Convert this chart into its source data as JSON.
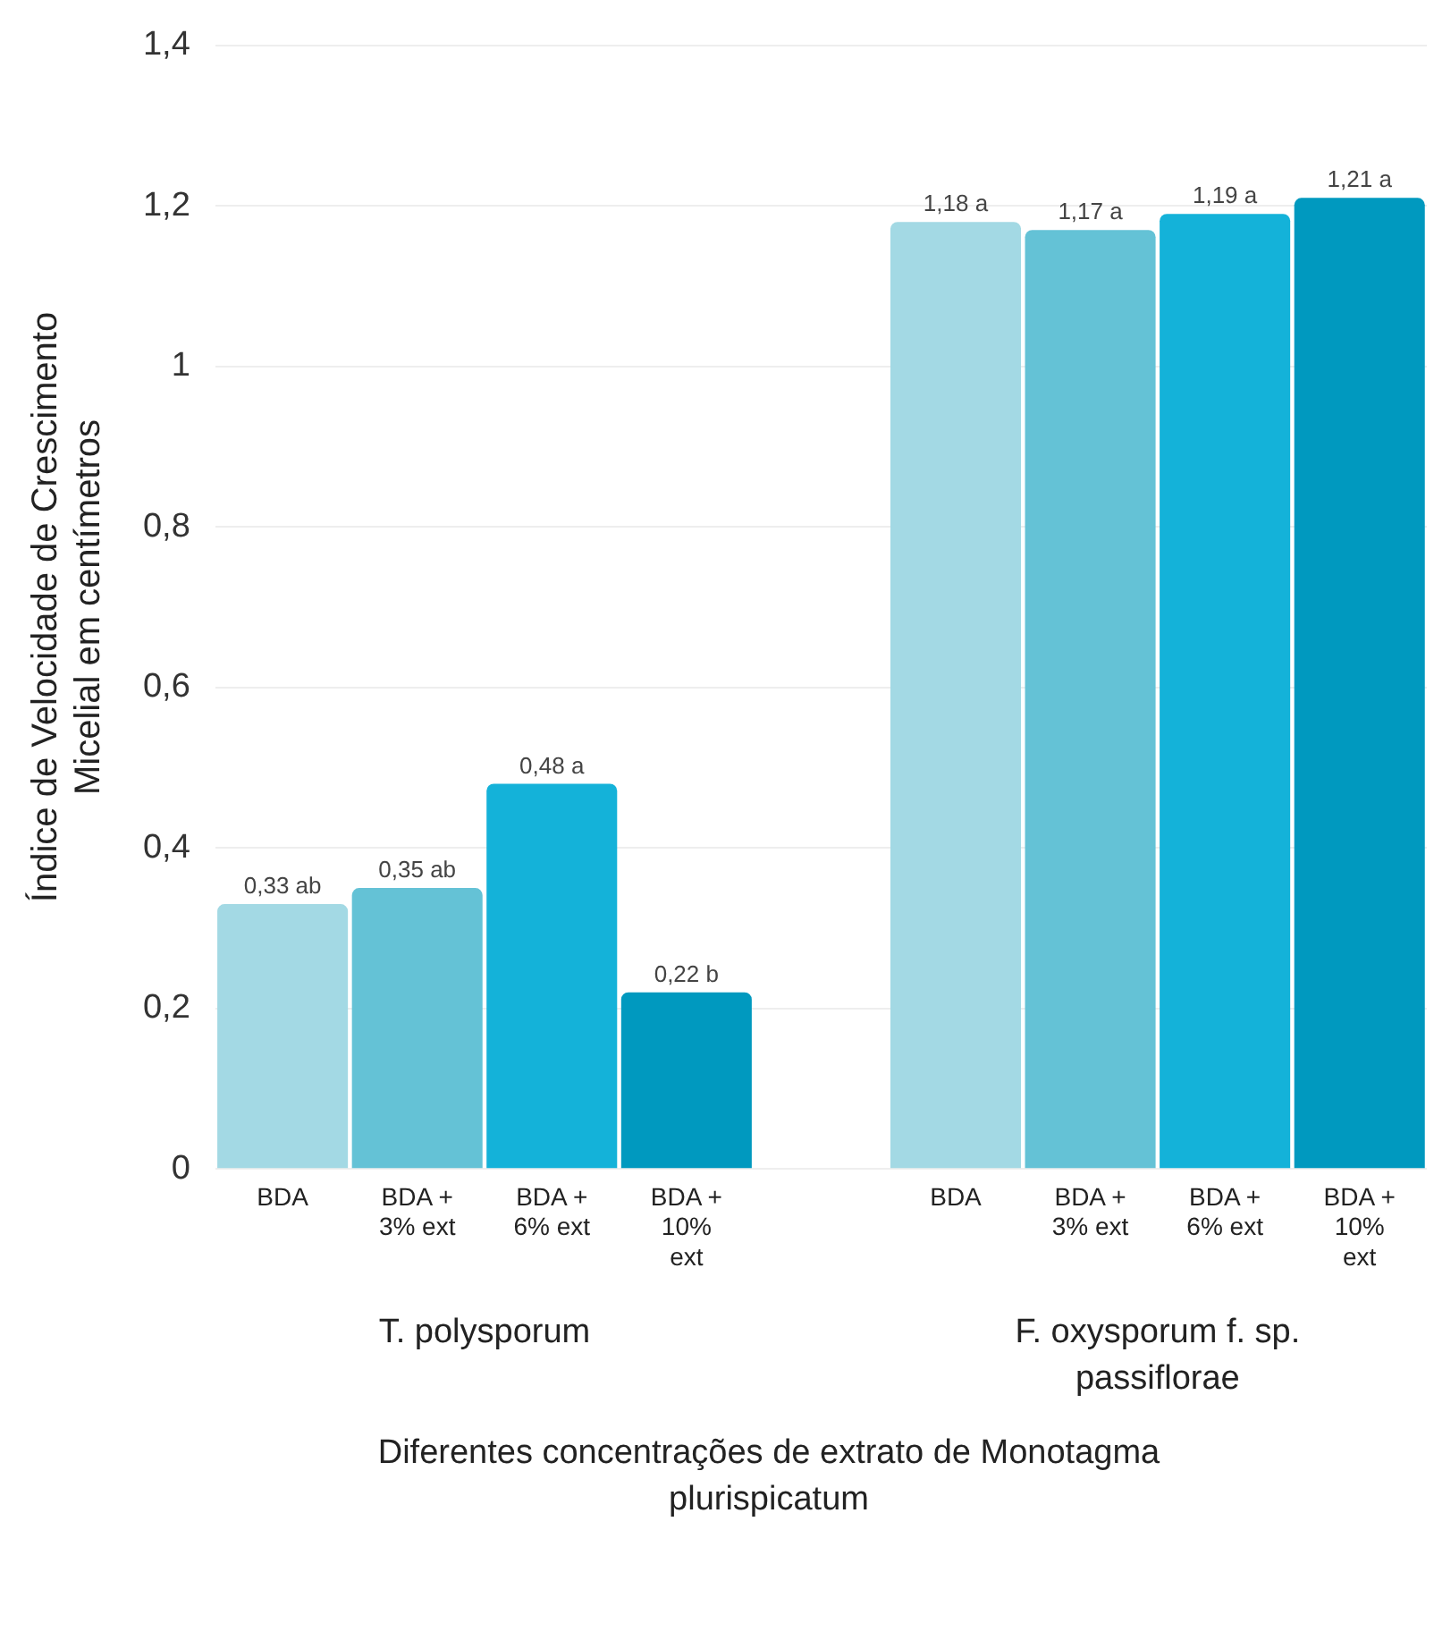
{
  "chart_data": {
    "type": "bar",
    "categories": [
      "BDA",
      "BDA + 3% ext",
      "BDA + 6% ext",
      "BDA + 10% ext",
      null,
      "BDA",
      "BDA + 3% ext",
      "BDA + 6% ext",
      "BDA + 10% ext"
    ],
    "values": [
      0.33,
      0.35,
      0.48,
      0.22,
      null,
      1.18,
      1.17,
      1.19,
      1.21
    ],
    "colors": [
      "#a3d9e4",
      "#64c2d6",
      "#14b2d9",
      "#0099bf",
      "#ffffff",
      "#a3d9e4",
      "#64c2d6",
      "#14b2d9",
      "#0099bf"
    ],
    "value_labels": [
      "0,33 ab",
      "0,35 ab",
      "0,48 a",
      "0,22 b",
      null,
      "1,18 a",
      "1,17 a",
      "1,19 a",
      "1,21 a"
    ],
    "ylim": [
      0,
      1.4
    ],
    "yticks": [
      0,
      {
        "value": 0.2,
        "label": "0,2"
      },
      {
        "value": 0.4,
        "label": "0,4"
      },
      {
        "value": 0.6,
        "label": "0,6"
      },
      {
        "value": 0.8,
        "label": "0,8"
      },
      1,
      {
        "value": 1.2,
        "label": "1,2"
      },
      {
        "value": 1.4,
        "label": "1,4"
      }
    ],
    "grid": "y",
    "ylabel": "Índice de Velocidade de Crescimento Micelial em centímetros",
    "xlabel": "Diferentes concentrações de extrato de Monotagma plurispicatum",
    "annotations": [
      "T. polysporum",
      "F. oxysporum f. sp. passiflorae"
    ]
  }
}
